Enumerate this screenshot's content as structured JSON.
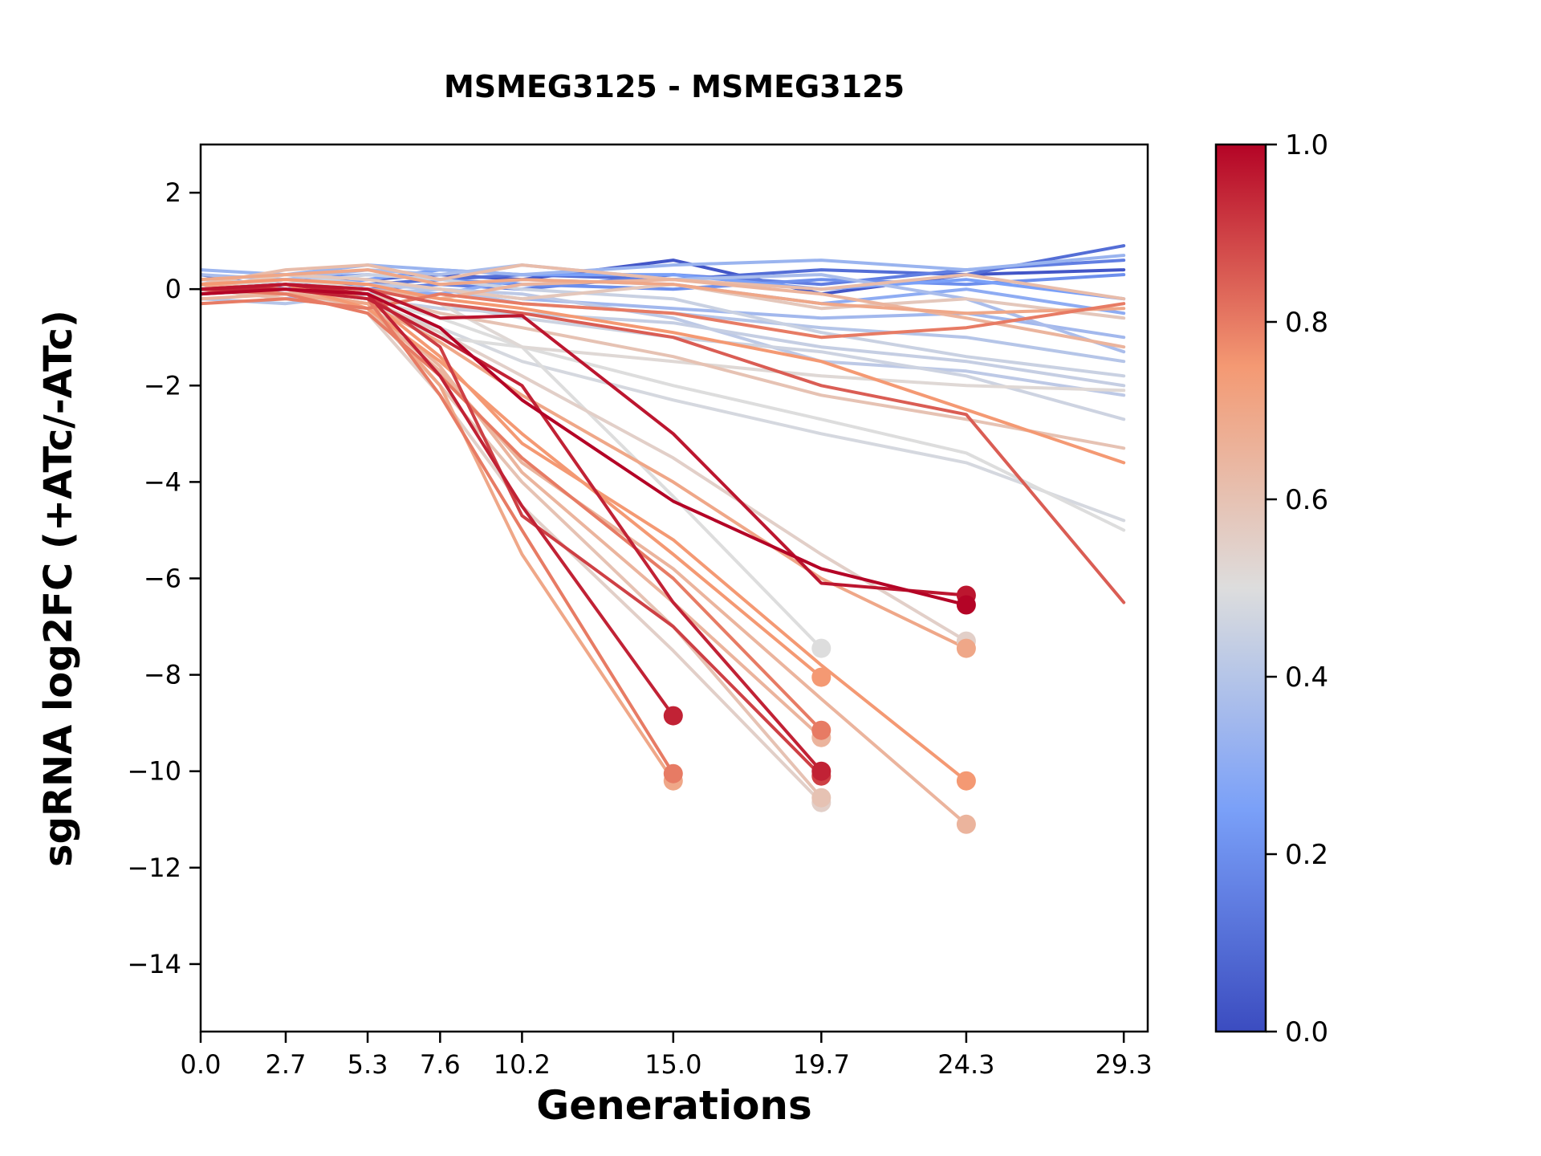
{
  "title": "MSMEG3125 - MSMEG3125",
  "xlabel": "Generations",
  "ylabel": "sgRNA log2FC (+ATc/-ATc)",
  "colorbar": {
    "min": 0.0,
    "max": 1.0,
    "tick_labels": [
      "0.0",
      "0.2",
      "0.4",
      "0.6",
      "0.8",
      "1.0"
    ],
    "tick_values": [
      0.0,
      0.2,
      0.4,
      0.6,
      0.8,
      1.0
    ],
    "colormap": "coolwarm",
    "color_low": "#3b4cc0",
    "color_mid": "#dddddd",
    "color_high": "#b40426"
  },
  "chart_data": {
    "type": "line",
    "x": [
      0.0,
      2.7,
      5.3,
      7.6,
      10.2,
      15.0,
      19.7,
      24.3,
      29.3
    ],
    "xtick_labels": [
      "0.0",
      "2.7",
      "5.3",
      "7.6",
      "10.2",
      "15.0",
      "19.7",
      "24.3",
      "29.3"
    ],
    "ytick_values": [
      2,
      0,
      -2,
      -4,
      -6,
      -8,
      -10,
      -12,
      -14
    ],
    "ytick_labels": [
      "2",
      "0",
      "−2",
      "−4",
      "−6",
      "−8",
      "−10",
      "−12",
      "−14"
    ],
    "xlim": [
      0,
      30.06
    ],
    "ylim": [
      -15.4,
      3.0
    ],
    "grid": false,
    "legend": "colorbar-right",
    "series": [
      {
        "c": 0.03,
        "marker": false,
        "y": [
          0.2,
          0.1,
          0.2,
          0.3,
          0.2,
          0.6,
          -0.1,
          0.3,
          0.4
        ]
      },
      {
        "c": 0.1,
        "marker": false,
        "y": [
          0.3,
          0.0,
          0.1,
          0.2,
          0.3,
          0.2,
          0.4,
          0.3,
          0.9
        ]
      },
      {
        "c": 0.15,
        "marker": false,
        "y": [
          0.1,
          -0.1,
          0.0,
          0.1,
          0.0,
          0.3,
          0.1,
          0.4,
          0.6
        ]
      },
      {
        "c": 0.2,
        "marker": false,
        "y": [
          0.0,
          0.2,
          0.3,
          0.2,
          0.1,
          0.0,
          0.2,
          0.1,
          0.3
        ]
      },
      {
        "c": 0.25,
        "marker": false,
        "y": [
          -0.1,
          0.0,
          0.2,
          0.4,
          0.3,
          0.3,
          0.0,
          0.2,
          -0.2
        ]
      },
      {
        "c": 0.3,
        "marker": false,
        "y": [
          0.2,
          0.1,
          0.0,
          -0.1,
          0.2,
          0.1,
          -0.3,
          0.0,
          -0.5
        ]
      },
      {
        "c": 0.33,
        "marker": false,
        "y": [
          0.4,
          0.3,
          0.5,
          0.4,
          0.3,
          0.5,
          0.6,
          0.4,
          0.7
        ]
      },
      {
        "c": 0.35,
        "marker": false,
        "y": [
          0.0,
          -0.2,
          0.1,
          0.0,
          -0.2,
          -0.4,
          -0.6,
          -0.5,
          -1.0
        ]
      },
      {
        "c": 0.37,
        "marker": false,
        "y": [
          0.3,
          0.2,
          0.4,
          0.3,
          0.5,
          0.2,
          0.3,
          -0.2,
          -1.3
        ]
      },
      {
        "c": 0.4,
        "marker": false,
        "y": [
          -0.2,
          -0.3,
          -0.1,
          0.0,
          -0.3,
          -0.5,
          -0.8,
          -1.0,
          -1.5
        ]
      },
      {
        "c": 0.42,
        "marker": false,
        "y": [
          0.2,
          0.3,
          0.1,
          0.0,
          -0.1,
          -0.6,
          -1.5,
          -1.7,
          -2.2
        ]
      },
      {
        "c": 0.44,
        "marker": false,
        "y": [
          0.1,
          0.0,
          -0.2,
          -0.4,
          -0.5,
          -0.7,
          -1.2,
          -1.5,
          -2.0
        ]
      },
      {
        "c": 0.45,
        "marker": false,
        "y": [
          0.2,
          0.1,
          0.3,
          0.2,
          0.0,
          -0.2,
          -0.9,
          -1.4,
          -1.8
        ]
      },
      {
        "c": 0.46,
        "marker": false,
        "y": [
          0.0,
          0.1,
          0.0,
          -0.3,
          -0.6,
          -1.0,
          -1.3,
          -1.8,
          -2.7
        ]
      },
      {
        "c": 0.5,
        "marker": false,
        "y": [
          0.1,
          0.0,
          -0.2,
          -0.6,
          -1.2,
          -2.0,
          -2.7,
          -3.4,
          -5.0
        ]
      },
      {
        "c": 0.48,
        "marker": false,
        "y": [
          0.0,
          -0.1,
          -0.3,
          -0.8,
          -1.5,
          -2.3,
          -3.0,
          -3.6,
          -4.8
        ]
      },
      {
        "c": 0.52,
        "marker": false,
        "y": [
          0.0,
          0.2,
          0.0,
          -0.3,
          -1.2,
          -1.5,
          -1.8,
          -2.0,
          -2.1
        ]
      },
      {
        "c": 0.95,
        "marker": true,
        "y": [
          0.0,
          0.1,
          -0.1,
          -1.8,
          -4.5,
          -8.85
        ]
      },
      {
        "c": 0.8,
        "marker": true,
        "y": [
          -0.1,
          0.0,
          -0.2,
          -2.2,
          -5.0,
          -10.05
        ]
      },
      {
        "c": 0.7,
        "marker": true,
        "y": [
          0.0,
          -0.1,
          -0.3,
          -2.0,
          -5.5,
          -10.2
        ]
      },
      {
        "c": 0.5,
        "marker": true,
        "y": [
          0.1,
          0.0,
          -0.3,
          -1.0,
          -1.2,
          -4.3,
          -7.45
        ]
      },
      {
        "c": 0.75,
        "marker": true,
        "y": [
          0.0,
          0.1,
          -0.4,
          -1.5,
          -3.0,
          -5.5,
          -8.05
        ]
      },
      {
        "c": 0.8,
        "marker": true,
        "y": [
          0.0,
          -0.1,
          -0.5,
          -1.8,
          -3.5,
          -6.0,
          -9.15
        ]
      },
      {
        "c": 0.65,
        "marker": true,
        "y": [
          0.1,
          0.0,
          -0.3,
          -1.6,
          -3.8,
          -6.5,
          -9.3
        ]
      },
      {
        "c": 0.95,
        "marker": true,
        "y": [
          0.0,
          0.0,
          -0.2,
          -1.0,
          -2.0,
          -6.5,
          -10.0
        ]
      },
      {
        "c": 0.9,
        "marker": true,
        "y": [
          -0.1,
          0.1,
          -0.1,
          -1.2,
          -4.7,
          -7.0,
          -10.1
        ]
      },
      {
        "c": 0.6,
        "marker": true,
        "y": [
          0.0,
          -0.2,
          -0.4,
          -2.0,
          -4.0,
          -7.0,
          -10.55
        ]
      },
      {
        "c": 0.55,
        "marker": true,
        "y": [
          0.1,
          0.0,
          -0.5,
          -2.2,
          -4.5,
          -7.5,
          -10.65
        ]
      },
      {
        "c": 0.97,
        "marker": true,
        "y": [
          0.0,
          0.1,
          0.0,
          -0.6,
          -0.55,
          -3.0,
          -6.1,
          -6.35
        ]
      },
      {
        "c": 1.0,
        "marker": true,
        "y": [
          -0.1,
          0.0,
          -0.1,
          -0.8,
          -2.3,
          -4.4,
          -5.8,
          -6.55
        ]
      },
      {
        "c": 0.55,
        "marker": true,
        "y": [
          0.0,
          0.0,
          -0.2,
          -0.9,
          -1.8,
          -3.5,
          -5.5,
          -7.3
        ]
      },
      {
        "c": 0.7,
        "marker": true,
        "y": [
          0.1,
          -0.1,
          -0.3,
          -1.1,
          -2.2,
          -4.0,
          -6.0,
          -7.45
        ]
      },
      {
        "c": 0.75,
        "marker": true,
        "y": [
          0.0,
          0.1,
          -0.2,
          -1.4,
          -3.2,
          -5.2,
          -7.8,
          -10.2
        ]
      },
      {
        "c": 0.65,
        "marker": true,
        "y": [
          0.0,
          0.0,
          -0.4,
          -1.7,
          -3.6,
          -5.8,
          -8.5,
          -11.1
        ]
      },
      {
        "c": 0.85,
        "marker": false,
        "y": [
          0.0,
          0.1,
          0.0,
          -0.3,
          -0.5,
          -1.0,
          -2.0,
          -2.6,
          -6.5
        ]
      },
      {
        "c": 0.75,
        "marker": false,
        "y": [
          0.1,
          0.2,
          0.1,
          -0.2,
          -0.4,
          -0.9,
          -1.5,
          -2.5,
          -3.6
        ]
      },
      {
        "c": 0.6,
        "marker": false,
        "y": [
          0.0,
          0.0,
          -0.1,
          -0.5,
          -0.8,
          -1.4,
          -2.2,
          -2.7,
          -3.3
        ]
      },
      {
        "c": 0.7,
        "marker": false,
        "y": [
          0.2,
          0.3,
          0.4,
          0.1,
          0.2,
          0.1,
          -0.3,
          -0.5,
          -0.4
        ]
      },
      {
        "c": 0.65,
        "marker": false,
        "y": [
          -0.2,
          -0.1,
          0.0,
          -0.2,
          0.1,
          0.2,
          -0.1,
          -0.6,
          -1.2
        ]
      },
      {
        "c": 0.8,
        "marker": false,
        "y": [
          -0.3,
          -0.2,
          -0.4,
          -0.1,
          -0.3,
          -0.5,
          -1.0,
          -0.8,
          -0.3
        ]
      },
      {
        "c": 0.62,
        "marker": false,
        "y": [
          0.1,
          0.4,
          0.5,
          0.2,
          0.5,
          0.2,
          0.0,
          0.3,
          -0.2
        ]
      },
      {
        "c": 0.58,
        "marker": false,
        "y": [
          0.0,
          0.3,
          0.2,
          0.0,
          -0.2,
          0.1,
          -0.4,
          -0.2,
          -0.6
        ]
      }
    ]
  }
}
